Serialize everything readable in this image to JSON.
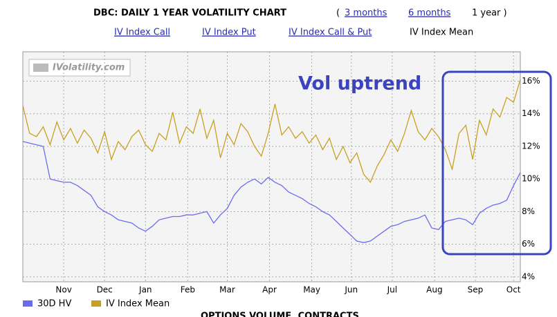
{
  "header": {
    "title": "DBC: DAILY 1 YEAR VOLATILITY CHART",
    "open": "(",
    "range_links": [
      "3 months",
      "6 months"
    ],
    "current": "1 year )",
    "index_links": [
      "IV Index Call",
      "IV Index Put",
      "IV Index Call & Put"
    ],
    "index_current": "IV Index Mean"
  },
  "chart_data": {
    "type": "line",
    "logo": "IVolatility.com",
    "annotation": "Vol uptrend",
    "x": [
      0,
      5,
      10,
      15,
      20,
      25,
      30,
      35,
      40,
      45,
      50,
      55,
      60,
      65,
      70,
      75,
      80,
      85,
      90,
      95,
      100,
      105,
      110,
      115,
      120,
      125,
      130,
      135,
      140,
      145,
      150,
      155,
      160,
      165,
      170,
      175,
      180,
      185,
      190,
      195,
      200,
      205,
      210,
      215,
      220,
      225,
      230,
      235,
      240,
      245,
      250,
      255,
      260,
      265,
      270,
      275,
      280,
      285,
      290,
      295,
      300,
      305,
      310,
      315,
      320,
      325,
      330,
      335,
      340,
      345,
      350,
      355,
      360,
      365
    ],
    "xlim": [
      0,
      365
    ],
    "xticks": [
      {
        "value": 30,
        "label": "Nov"
      },
      {
        "value": 60,
        "label": "Dec"
      },
      {
        "value": 90,
        "label": "Jan"
      },
      {
        "value": 121,
        "label": "Feb"
      },
      {
        "value": 150,
        "label": "Mar"
      },
      {
        "value": 181,
        "label": "Apr"
      },
      {
        "value": 212,
        "label": "May"
      },
      {
        "value": 241,
        "label": "Jun"
      },
      {
        "value": 271,
        "label": "Jul"
      },
      {
        "value": 302,
        "label": "Aug"
      },
      {
        "value": 332,
        "label": "Sep"
      },
      {
        "value": 360,
        "label": "Oct"
      }
    ],
    "ylim": [
      3.7,
      17.8
    ],
    "yticks": [
      {
        "value": 4,
        "label": "4%"
      },
      {
        "value": 6,
        "label": "6%"
      },
      {
        "value": 8,
        "label": "8%"
      },
      {
        "value": 10,
        "label": "10%"
      },
      {
        "value": 12,
        "label": "12%"
      },
      {
        "value": 14,
        "label": "14%"
      },
      {
        "value": 16,
        "label": "16%"
      }
    ],
    "grid": true,
    "series": [
      {
        "name": "30D HV",
        "color": "#6b6bf0",
        "values": [
          12.3,
          12.2,
          12.1,
          12.0,
          10.0,
          9.9,
          9.8,
          9.8,
          9.6,
          9.3,
          9.0,
          8.3,
          8.0,
          7.8,
          7.5,
          7.4,
          7.3,
          7.0,
          6.8,
          7.1,
          7.5,
          7.6,
          7.7,
          7.7,
          7.8,
          7.8,
          7.9,
          8.0,
          7.3,
          7.8,
          8.2,
          9.0,
          9.5,
          9.8,
          10.0,
          9.7,
          10.1,
          9.8,
          9.6,
          9.2,
          9.0,
          8.8,
          8.5,
          8.3,
          8.0,
          7.8,
          7.4,
          7.0,
          6.6,
          6.2,
          6.1,
          6.2,
          6.5,
          6.8,
          7.1,
          7.2,
          7.4,
          7.5,
          7.6,
          7.8,
          7.0,
          6.9,
          7.4,
          7.5,
          7.6,
          7.5,
          7.2,
          7.9,
          8.2,
          8.4,
          8.5,
          8.7,
          9.6,
          10.4
        ]
      },
      {
        "name": "IV Index Mean",
        "color": "#c8a020",
        "values": [
          14.5,
          12.8,
          12.6,
          13.2,
          12.1,
          13.5,
          12.4,
          13.1,
          12.2,
          13.0,
          12.5,
          11.6,
          12.9,
          11.2,
          12.3,
          11.8,
          12.6,
          13.0,
          12.1,
          11.7,
          12.8,
          12.4,
          14.1,
          12.2,
          13.2,
          12.8,
          14.3,
          12.5,
          13.6,
          11.3,
          12.8,
          12.1,
          13.4,
          12.9,
          12.0,
          11.4,
          12.8,
          14.6,
          12.7,
          13.2,
          12.5,
          12.9,
          12.2,
          12.7,
          11.8,
          12.5,
          11.2,
          12.0,
          11.0,
          11.6,
          10.3,
          9.8,
          10.8,
          11.5,
          12.4,
          11.7,
          12.8,
          14.2,
          12.9,
          12.4,
          13.1,
          12.6,
          11.8,
          10.6,
          12.8,
          13.3,
          11.2,
          13.6,
          12.7,
          14.3,
          13.8,
          15.0,
          14.7,
          16.1
        ]
      }
    ]
  },
  "footer": "OPTIONS VOLUME, CONTRACTS"
}
